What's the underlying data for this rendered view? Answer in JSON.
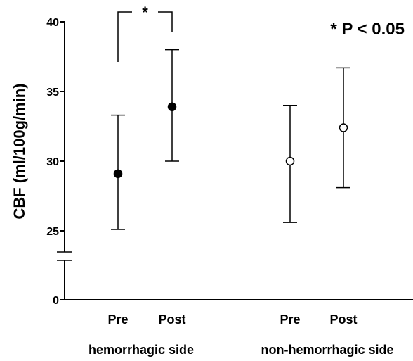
{
  "chart_data": {
    "type": "scatter",
    "title": "",
    "xlabel": "",
    "ylabel": "CBF (ml/100g/min)",
    "y_ticks": [
      "0",
      "25",
      "30",
      "35",
      "40"
    ],
    "y_axis_break": true,
    "ylim": [
      25,
      40
    ],
    "grid": false,
    "legend": "none",
    "groups": [
      {
        "label": "hemorrhagic side",
        "points": [
          {
            "category": "Pre",
            "value": 29.1,
            "error_low": 25.1,
            "error_high": 33.3,
            "marker": "filled"
          },
          {
            "category": "Post",
            "value": 33.9,
            "error_low": 30.0,
            "error_high": 38.0,
            "marker": "filled"
          }
        ]
      },
      {
        "label": "non-hemorrhagic side",
        "points": [
          {
            "category": "Pre",
            "value": 30.0,
            "error_low": 25.6,
            "error_high": 34.0,
            "marker": "open"
          },
          {
            "category": "Post",
            "value": 32.4,
            "error_low": 28.1,
            "error_high": 36.7,
            "marker": "open"
          }
        ]
      }
    ],
    "annotations": {
      "bracket_star": "*",
      "significance_note": "* P < 0.05"
    },
    "colors": {
      "marker": "#000000",
      "open_fill": "#ffffff"
    }
  }
}
